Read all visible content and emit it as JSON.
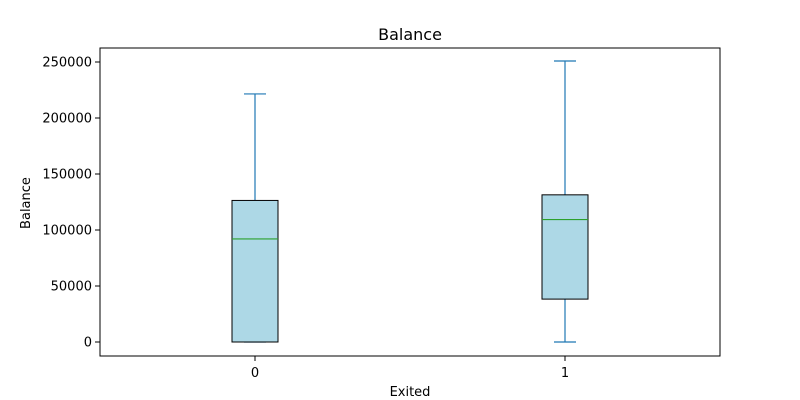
{
  "chart_data": {
    "type": "box",
    "title": "Balance",
    "xlabel": "Exited",
    "ylabel": "Balance",
    "categories": [
      "0",
      "1"
    ],
    "ylim": [
      -12500,
      262500
    ],
    "yticks": [
      0,
      50000,
      100000,
      150000,
      200000,
      250000
    ],
    "ytick_labels": [
      "0",
      "50000",
      "100000",
      "150000",
      "200000",
      "250000"
    ],
    "boxes": [
      {
        "category": "0",
        "whisker_low": 0,
        "q1": 0,
        "median": 92000,
        "q3": 126400,
        "whisker_high": 221500
      },
      {
        "category": "1",
        "whisker_low": 0,
        "q1": 38300,
        "median": 109300,
        "q3": 131400,
        "whisker_high": 250900
      }
    ],
    "grid": false,
    "colors": {
      "box_fill": "#add8e6",
      "box_edge": "#000000",
      "whisker": "#1f77b4",
      "median": "#2ca02c",
      "axes": "#000000"
    }
  }
}
